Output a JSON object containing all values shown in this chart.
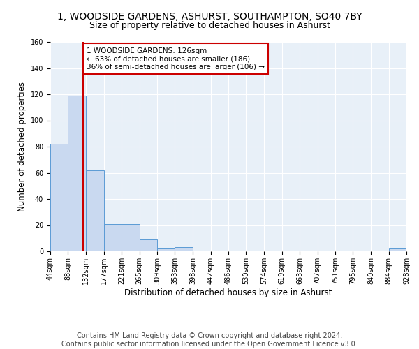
{
  "title": "1, WOODSIDE GARDENS, ASHURST, SOUTHAMPTON, SO40 7BY",
  "subtitle": "Size of property relative to detached houses in Ashurst",
  "xlabel": "Distribution of detached houses by size in Ashurst",
  "ylabel": "Number of detached properties",
  "bin_edges": [
    44,
    88,
    132,
    177,
    221,
    265,
    309,
    353,
    398,
    442,
    486,
    530,
    574,
    619,
    663,
    707,
    751,
    795,
    840,
    884,
    928
  ],
  "bin_counts": [
    82,
    119,
    62,
    21,
    21,
    9,
    2,
    3,
    0,
    0,
    0,
    0,
    0,
    0,
    0,
    0,
    0,
    0,
    0,
    2
  ],
  "bar_color": "#c9d9f0",
  "bar_edge_color": "#5b9bd5",
  "vline_color": "#cc0000",
  "vline_x": 126,
  "annotation_text": "1 WOODSIDE GARDENS: 126sqm\n← 63% of detached houses are smaller (186)\n36% of semi-detached houses are larger (106) →",
  "annotation_box_color": "white",
  "annotation_box_edge": "#cc0000",
  "tick_labels": [
    "44sqm",
    "88sqm",
    "132sqm",
    "177sqm",
    "221sqm",
    "265sqm",
    "309sqm",
    "353sqm",
    "398sqm",
    "442sqm",
    "486sqm",
    "530sqm",
    "574sqm",
    "619sqm",
    "663sqm",
    "707sqm",
    "751sqm",
    "795sqm",
    "840sqm",
    "884sqm",
    "928sqm"
  ],
  "ylim": [
    0,
    160
  ],
  "xlim": [
    44,
    928
  ],
  "yticks": [
    0,
    20,
    40,
    60,
    80,
    100,
    120,
    140,
    160
  ],
  "background_color": "#e8f0f8",
  "footer_text": "Contains HM Land Registry data © Crown copyright and database right 2024.\nContains public sector information licensed under the Open Government Licence v3.0.",
  "title_fontsize": 10,
  "subtitle_fontsize": 9,
  "xlabel_fontsize": 8.5,
  "ylabel_fontsize": 8.5,
  "tick_fontsize": 7,
  "footer_fontsize": 7,
  "annotation_fontsize": 7.5
}
